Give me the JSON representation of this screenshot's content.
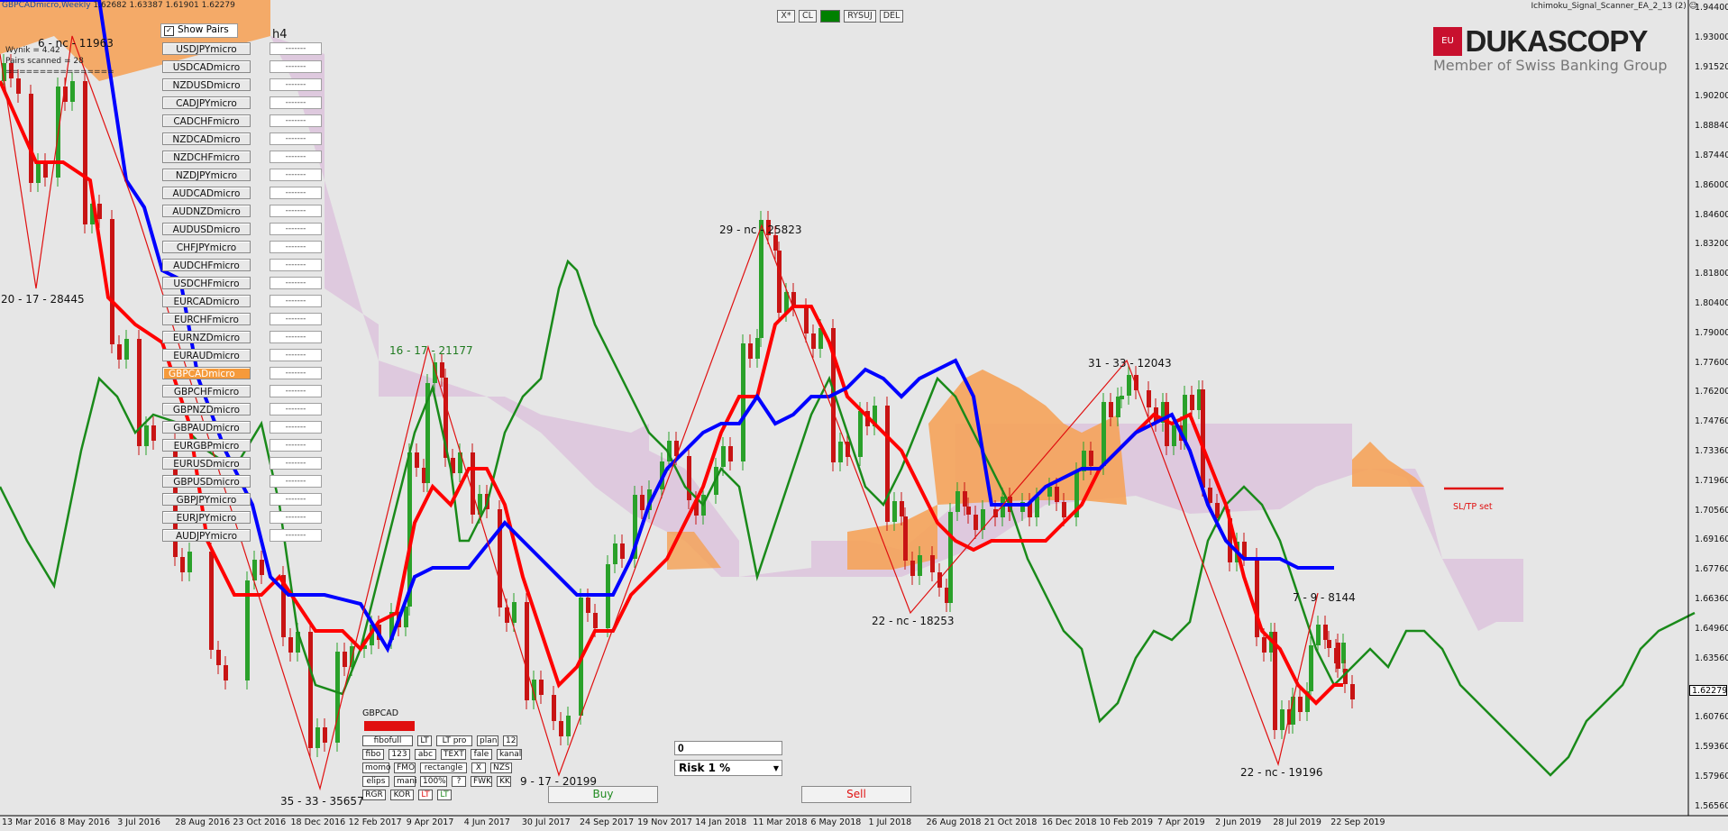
{
  "header": {
    "symbol_line": "GBPCADmicro,Weekly",
    "ohlc": "1.62682 1.63387 1.61901 1.62279",
    "indicator_title": "Ichimoku_Signal_Scanner_EA_2_13 (2) ☺"
  },
  "info_lines": {
    "wynik": "Wynik = 4.42",
    "pairs_scanned": "Pairs scanned = 28",
    "separator": "================"
  },
  "scanner": {
    "show_pairs_label": "Show Pairs",
    "timeframe": "h4",
    "active_pair": "GBPCADmicro",
    "value_placeholder": "-------",
    "pairs": [
      "USDJPYmicro",
      "USDCADmicro",
      "NZDUSDmicro",
      "CADJPYmicro",
      "CADCHFmicro",
      "NZDCADmicro",
      "NZDCHFmicro",
      "NZDJPYmicro",
      "AUDCADmicro",
      "AUDNZDmicro",
      "AUDUSDmicro",
      "CHFJPYmicro",
      "AUDCHFmicro",
      "USDCHFmicro",
      "EURCADmicro",
      "EURCHFmicro",
      "EURNZDmicro",
      "EURAUDmicro",
      "GBPCADmicro",
      "GBPCHFmicro",
      "GBPNZDmicro",
      "GBPAUDmicro",
      "EURGBPmicro",
      "EURUSDmicro",
      "GBPUSDmicro",
      "GBPJPYmicro",
      "EURJPYmicro",
      "AUDJPYmicro"
    ]
  },
  "top_buttons": [
    "X*",
    "CL",
    "",
    "RYSUJ",
    "DEL"
  ],
  "top_button_colors": {
    "active": "#008000"
  },
  "logo": {
    "badge": "EU",
    "name": "DUKASCOPY",
    "tagline": "Member of Swiss Banking Group",
    "color": "#c8102e"
  },
  "tools": {
    "pair_label": "GBPCAD",
    "button_rows": [
      [
        "fibofull",
        "LT",
        "LT pro",
        "plan",
        "12"
      ],
      [
        "fibo",
        "123",
        "abc",
        "TEXT",
        "fale",
        "kanal"
      ],
      [
        "momo",
        "FMO",
        "rectangle",
        "X",
        "NZS"
      ],
      [
        "elips",
        "mani",
        "100%",
        "?",
        "FWK",
        "KK"
      ],
      [
        "RGR",
        "KOR",
        "LT",
        "LT"
      ]
    ]
  },
  "trade": {
    "lot_value": "0",
    "risk_label": "Risk  1 %",
    "buy_label": "Buy",
    "sell_label": "Sell",
    "sltp_label": "SL/TP set"
  },
  "price_scale": [
    "1.94400",
    "1.93000",
    "1.91520",
    "1.90200",
    "1.88840",
    "1.87440",
    "1.86000",
    "1.84600",
    "1.83200",
    "1.81800",
    "1.80400",
    "1.79000",
    "1.77600",
    "1.76200",
    "1.74760",
    "1.73360",
    "1.71960",
    "1.70560",
    "1.69160",
    "1.67760",
    "1.66360",
    "1.64960",
    "1.63560",
    "1.62279",
    "1.60760",
    "1.59360",
    "1.57960",
    "1.56560"
  ],
  "current_price": "1.62279",
  "time_scale": [
    "13 Mar 2016",
    "8 May 2016",
    "3 Jul 2016",
    "28 Aug 2016",
    "23 Oct 2016",
    "18 Dec 2016",
    "12 Feb 2017",
    "9 Apr 2017",
    "4 Jun 2017",
    "30 Jul 2017",
    "24 Sep 2017",
    "19 Nov 2017",
    "14 Jan 2018",
    "11 Mar 2018",
    "6 May 2018",
    "1 Jul 2018",
    "26 Aug 2018",
    "21 Oct 2018",
    "16 Dec 2018",
    "10 Feb 2019",
    "7 Apr 2019",
    "2 Jun 2019",
    "28 Jul 2019",
    "22 Sep 2019"
  ],
  "zigzag_labels": [
    "6 - nc - 11963",
    "20 - 17 - 28445",
    "16 - 17 - 21177",
    "35 - 33 - 35657",
    "9 - 17 - 20199",
    "29 - nc - 25823",
    "22 - nc - 18253",
    "31 - 33 - 12043",
    "7 - 9 - 8144",
    "22 - nc - 19196"
  ],
  "colors": {
    "background": "#e6e6e6",
    "tenkan": "#ff0000",
    "kijun": "#0000ff",
    "chikou": "#1a8a1a",
    "kumo_bear": "#dcc3dc",
    "kumo_bull": "#f5a35a",
    "bull_candle": "#2aa12a",
    "bear_candle": "#c81414"
  }
}
